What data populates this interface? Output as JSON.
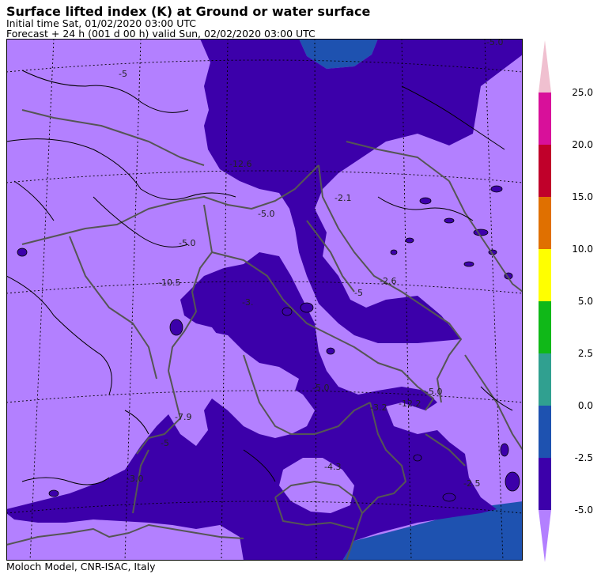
{
  "header": {
    "title": "Surface lifted index (K) at Ground or water surface",
    "initial_time": "Initial time  Sat, 01/02/2020  03:00 UTC",
    "forecast": "Forecast  +  24 h  (001 d 00 h)  valid Sun, 02/02/2020 03:00 UTC"
  },
  "footer": {
    "credit": "Moloch Model, CNR-ISAC, Italy"
  },
  "colors": {
    "field_light": "#b380ff",
    "field_dark": "#3c00aa",
    "field_blue": "#1e52b0",
    "coast": "#555555",
    "contour": "#000000"
  },
  "colorbar": {
    "labels": [
      "25.0",
      "20.0",
      "15.0",
      "10.0",
      "5.0",
      "2.5",
      "0.0",
      "-2.5",
      "-5.0"
    ],
    "classes": [
      {
        "range": "above 25.0",
        "color": "#f0c0d0"
      },
      {
        "range": "20.0 to 25.0",
        "color": "#d8109a"
      },
      {
        "range": "15.0 to 20.0",
        "color": "#c0002a"
      },
      {
        "range": "10.0 to 15.0",
        "color": "#e07000"
      },
      {
        "range": "5.0 to 10.0",
        "color": "#ffff00"
      },
      {
        "range": "2.5 to 5.0",
        "color": "#10b818"
      },
      {
        "range": "0.0 to 2.5",
        "color": "#30a090"
      },
      {
        "range": "-2.5 to 0.0",
        "color": "#1e52b0"
      },
      {
        "range": "-5.0 to -2.5",
        "color": "#3c00aa"
      },
      {
        "range": "below -5.0",
        "color": "#b380ff"
      }
    ]
  },
  "map_labels": [
    "-5.0",
    "-5",
    "-12.6",
    "-2.1",
    "-5.0",
    "-2.6",
    "-10.5",
    "-5",
    "-3.",
    "-5.0",
    "-5.0",
    "-5.0",
    "-3.2",
    "-12.2",
    "-7.9",
    "-5",
    "-3.0",
    "-4.3",
    "-2.5"
  ]
}
